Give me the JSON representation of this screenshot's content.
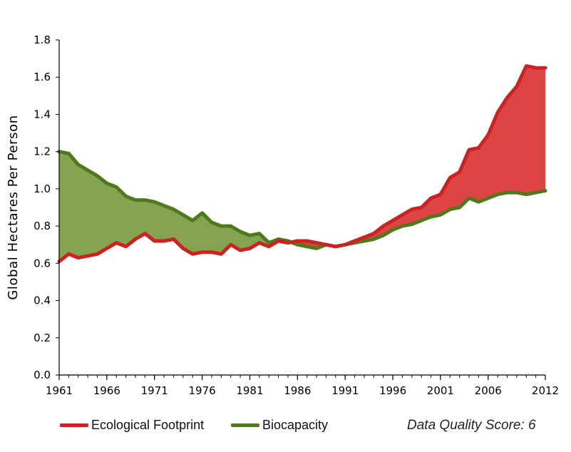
{
  "chart_data": {
    "type": "area",
    "x": [
      1961,
      1962,
      1963,
      1964,
      1965,
      1966,
      1967,
      1968,
      1969,
      1970,
      1971,
      1972,
      1973,
      1974,
      1975,
      1976,
      1977,
      1978,
      1979,
      1980,
      1981,
      1982,
      1983,
      1984,
      1985,
      1986,
      1987,
      1988,
      1989,
      1990,
      1991,
      1992,
      1993,
      1994,
      1995,
      1996,
      1997,
      1998,
      1999,
      2000,
      2001,
      2002,
      2003,
      2004,
      2005,
      2006,
      2007,
      2008,
      2009,
      2010,
      2011,
      2012
    ],
    "series": [
      {
        "name": "Ecological Footprint",
        "color": "#cc2222",
        "fill": "#dd4444",
        "values": [
          0.61,
          0.65,
          0.63,
          0.64,
          0.65,
          0.68,
          0.71,
          0.69,
          0.73,
          0.76,
          0.72,
          0.72,
          0.73,
          0.68,
          0.65,
          0.66,
          0.66,
          0.65,
          0.7,
          0.67,
          0.68,
          0.71,
          0.69,
          0.72,
          0.71,
          0.72,
          0.72,
          0.71,
          0.7,
          0.69,
          0.7,
          0.72,
          0.74,
          0.76,
          0.8,
          0.83,
          0.86,
          0.89,
          0.9,
          0.95,
          0.97,
          1.06,
          1.09,
          1.21,
          1.22,
          1.29,
          1.41,
          1.49,
          1.55,
          1.66,
          1.65,
          1.65
        ]
      },
      {
        "name": "Biocapacity",
        "color": "#4e7a1c",
        "fill": "#86a352",
        "values": [
          1.2,
          1.19,
          1.13,
          1.1,
          1.07,
          1.03,
          1.01,
          0.96,
          0.94,
          0.94,
          0.93,
          0.91,
          0.89,
          0.86,
          0.83,
          0.87,
          0.82,
          0.8,
          0.8,
          0.77,
          0.75,
          0.76,
          0.71,
          0.73,
          0.72,
          0.7,
          0.69,
          0.68,
          0.7,
          0.69,
          0.7,
          0.71,
          0.72,
          0.73,
          0.75,
          0.78,
          0.8,
          0.81,
          0.83,
          0.85,
          0.86,
          0.89,
          0.9,
          0.95,
          0.93,
          0.95,
          0.97,
          0.98,
          0.98,
          0.97,
          0.98,
          0.99
        ]
      }
    ],
    "title": "",
    "xlabel": "",
    "ylabel": "Global Hectares Per Person",
    "xlim": [
      1961,
      2012
    ],
    "ylim": [
      0,
      1.8
    ],
    "yticks": [
      "0.0",
      "0.2",
      "0.4",
      "0.6",
      "0.8",
      "1.0",
      "1.2",
      "1.4",
      "1.6",
      "1.8"
    ],
    "xticks": [
      "1961",
      "1966",
      "1971",
      "1976",
      "1981",
      "1986",
      "1991",
      "1996",
      "2001",
      "2006",
      "2012"
    ],
    "grid": false,
    "legend": "bottom-left",
    "annotation": "Data Quality Score: 6"
  }
}
